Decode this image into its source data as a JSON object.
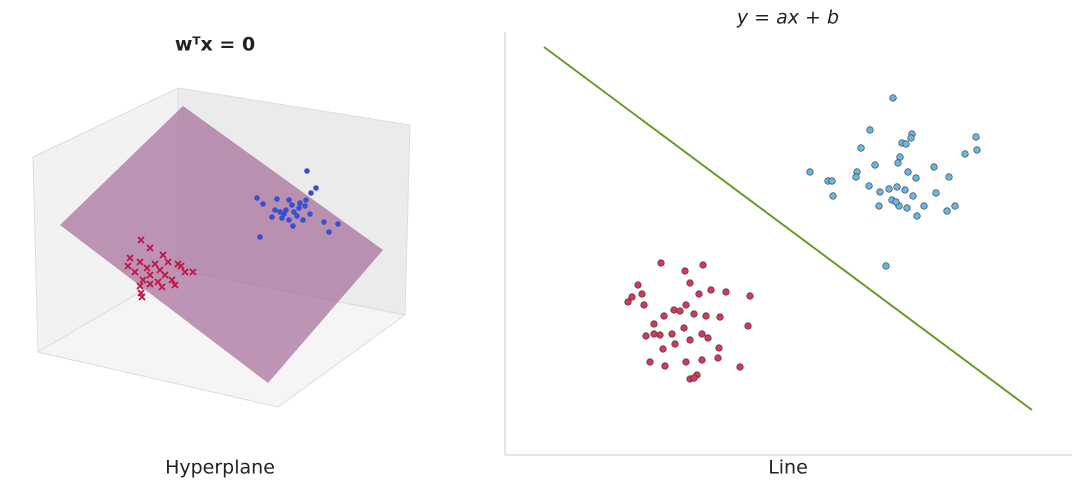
{
  "chart_data": [
    {
      "type": "scatter3d",
      "title": "wᵀx = 0",
      "xlabel": "Hyperplane",
      "xlim": [
        0,
        420
      ],
      "ylim": [
        0,
        450
      ],
      "series": [
        {
          "color": "#c0144a",
          "marker": "x",
          "x": [
            141,
            150,
            163,
            130,
            140,
            155,
            168,
            178,
            147,
            160,
            135,
            150,
            165,
            185,
            193,
            143,
            158,
            172,
            140,
            150,
            162,
            141,
            142,
            175,
            128,
            181
          ],
          "values": [
            210,
            202,
            195,
            192,
            188,
            186,
            188,
            186,
            182,
            180,
            178,
            175,
            175,
            178,
            178,
            170,
            168,
            170,
            164,
            166,
            163,
            157,
            153,
            165,
            184,
            184
          ]
        },
        {
          "color": "#3a4fd0",
          "marker": "o",
          "x": [
            307,
            316,
            311,
            257,
            263,
            277,
            289,
            300,
            305,
            286,
            294,
            280,
            297,
            310,
            324,
            338,
            289,
            303,
            282,
            299,
            275,
            292,
            260,
            329,
            293,
            284,
            306,
            272
          ],
          "values": [
            279,
            262,
            257,
            252,
            246,
            251,
            250,
            247,
            244,
            240,
            238,
            238,
            234,
            236,
            228,
            226,
            230,
            230,
            232,
            242,
            240,
            245,
            213,
            218,
            224,
            236,
            250,
            233
          ]
        }
      ]
    },
    {
      "type": "scatter",
      "title": "y = ax + b",
      "xlabel": "Line",
      "xlim": [
        0,
        567
      ],
      "ylim": [
        0,
        423
      ],
      "line": {
        "color": "#6b9a2a",
        "x": [
          39,
          527
        ],
        "y": [
          408,
          45
        ]
      },
      "series": [
        {
          "color": "#d03a5a",
          "marker": "o",
          "x": [
            156,
            180,
            198,
            133,
            127,
            137,
            123,
            139,
            185,
            206,
            194,
            221,
            245,
            169,
            175,
            181,
            189,
            159,
            149,
            201,
            215,
            243,
            155,
            179,
            167,
            197,
            149,
            141,
            185,
            203,
            214,
            158,
            170,
            145,
            181,
            197,
            213,
            235,
            160,
            185,
            192,
            189
          ],
          "values": [
            192,
            184,
            190,
            170,
            158,
            161,
            153,
            150,
            172,
            165,
            161,
            163,
            159,
            145,
            144,
            150,
            141,
            139,
            131,
            139,
            138,
            129,
            120,
            127,
            121,
            121,
            121,
            119,
            115,
            117,
            107,
            106,
            111,
            93,
            93,
            95,
            97,
            88,
            89,
            76,
            80,
            77
          ]
        },
        {
          "color": "#6ab4e4",
          "marker": "o",
          "x": [
            388,
            365,
            407,
            406,
            397,
            401,
            471,
            472,
            460,
            356,
            395,
            393,
            352,
            305,
            370,
            403,
            429,
            411,
            444,
            323,
            327,
            351,
            364,
            375,
            392,
            400,
            384,
            328,
            431,
            408,
            387,
            374,
            394,
            402,
            419,
            450,
            442,
            412,
            381,
            391
          ],
          "values": [
            357,
            325,
            321,
            317,
            312,
            311,
            318,
            305,
            301,
            307,
            298,
            292,
            283,
            283,
            290,
            283,
            288,
            277,
            278,
            274,
            274,
            278,
            269,
            263,
            268,
            265,
            266,
            259,
            262,
            259,
            255,
            249,
            249,
            247,
            249,
            249,
            244,
            239,
            189,
            253
          ]
        }
      ]
    }
  ]
}
